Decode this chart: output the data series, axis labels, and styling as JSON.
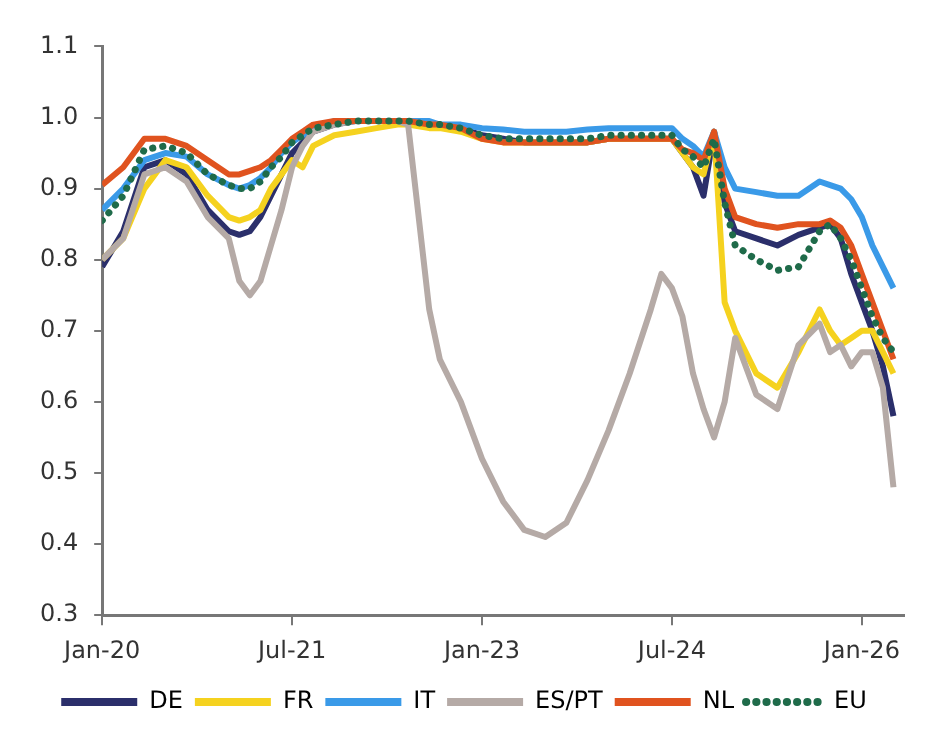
{
  "chart_data": {
    "type": "line",
    "x": [
      "2020-01",
      "2020-03",
      "2020-05",
      "2020-07",
      "2020-09",
      "2020-11",
      "2021-01",
      "2021-02",
      "2021-03",
      "2021-04",
      "2021-05",
      "2021-06",
      "2021-07",
      "2021-08",
      "2021-09",
      "2021-11",
      "2022-01",
      "2022-03",
      "2022-05",
      "2022-06",
      "2022-08",
      "2022-09",
      "2022-11",
      "2023-01",
      "2023-03",
      "2023-05",
      "2023-07",
      "2023-09",
      "2023-11",
      "2024-01",
      "2024-03",
      "2024-05",
      "2024-06",
      "2024-07",
      "2024-08",
      "2024-09",
      "2024-10",
      "2024-11",
      "2024-12",
      "2025-01",
      "2025-03",
      "2025-05",
      "2025-07",
      "2025-09",
      "2025-10",
      "2025-11",
      "2025-12",
      "2026-01",
      "2026-02",
      "2026-03",
      "2026-04"
    ],
    "series": [
      {
        "name": "DE",
        "color": "#2b2f6b",
        "line_style": "solid",
        "values": [
          0.79,
          0.84,
          0.93,
          0.94,
          0.92,
          0.87,
          0.84,
          0.835,
          0.84,
          0.86,
          0.89,
          0.92,
          0.95,
          0.965,
          0.98,
          0.99,
          0.995,
          0.995,
          0.995,
          0.995,
          0.99,
          0.99,
          0.985,
          0.975,
          0.97,
          0.965,
          0.965,
          0.965,
          0.965,
          0.97,
          0.97,
          0.97,
          0.97,
          0.97,
          0.95,
          0.93,
          0.89,
          0.98,
          0.88,
          0.84,
          0.83,
          0.82,
          0.835,
          0.845,
          0.85,
          0.83,
          0.78,
          0.74,
          0.7,
          0.65,
          0.58
        ]
      },
      {
        "name": "FR",
        "color": "#f5d21f",
        "line_style": "solid",
        "values": [
          0.8,
          0.83,
          0.9,
          0.94,
          0.93,
          0.89,
          0.86,
          0.855,
          0.86,
          0.87,
          0.9,
          0.92,
          0.94,
          0.93,
          0.96,
          0.975,
          0.98,
          0.985,
          0.99,
          0.99,
          0.985,
          0.985,
          0.98,
          0.97,
          0.965,
          0.965,
          0.965,
          0.965,
          0.965,
          0.97,
          0.97,
          0.97,
          0.97,
          0.97,
          0.95,
          0.93,
          0.92,
          0.98,
          0.74,
          0.7,
          0.64,
          0.62,
          0.67,
          0.73,
          0.7,
          0.68,
          0.69,
          0.7,
          0.7,
          0.67,
          0.64
        ]
      },
      {
        "name": "IT",
        "color": "#3a9ae8",
        "line_style": "solid",
        "values": [
          0.87,
          0.9,
          0.94,
          0.95,
          0.945,
          0.92,
          0.905,
          0.9,
          0.905,
          0.915,
          0.93,
          0.95,
          0.965,
          0.975,
          0.985,
          0.995,
          0.995,
          0.995,
          0.995,
          0.995,
          0.995,
          0.99,
          0.99,
          0.985,
          0.983,
          0.98,
          0.98,
          0.98,
          0.983,
          0.985,
          0.985,
          0.985,
          0.985,
          0.985,
          0.97,
          0.96,
          0.945,
          0.98,
          0.93,
          0.9,
          0.895,
          0.89,
          0.89,
          0.91,
          0.905,
          0.9,
          0.885,
          0.86,
          0.82,
          0.79,
          0.76
        ]
      },
      {
        "name": "ES/PT",
        "color": "#b5aaa6",
        "line_style": "solid",
        "values": [
          0.8,
          0.83,
          0.92,
          0.93,
          0.91,
          0.86,
          0.83,
          0.77,
          0.75,
          0.77,
          0.82,
          0.87,
          0.93,
          0.96,
          0.98,
          0.99,
          0.995,
          0.995,
          0.995,
          0.99,
          0.73,
          0.66,
          0.6,
          0.52,
          0.46,
          0.42,
          0.41,
          0.43,
          0.49,
          0.56,
          0.64,
          0.73,
          0.78,
          0.76,
          0.72,
          0.64,
          0.59,
          0.55,
          0.6,
          0.69,
          0.61,
          0.59,
          0.68,
          0.71,
          0.67,
          0.68,
          0.65,
          0.67,
          0.67,
          0.62,
          0.48
        ]
      },
      {
        "name": "NL",
        "color": "#e0531f",
        "line_style": "solid",
        "values": [
          0.905,
          0.93,
          0.97,
          0.97,
          0.96,
          0.94,
          0.92,
          0.92,
          0.925,
          0.93,
          0.94,
          0.955,
          0.97,
          0.98,
          0.99,
          0.995,
          0.995,
          0.995,
          0.995,
          0.995,
          0.99,
          0.99,
          0.985,
          0.97,
          0.965,
          0.965,
          0.965,
          0.965,
          0.965,
          0.97,
          0.97,
          0.97,
          0.97,
          0.97,
          0.955,
          0.95,
          0.94,
          0.98,
          0.9,
          0.86,
          0.85,
          0.845,
          0.85,
          0.85,
          0.855,
          0.845,
          0.82,
          0.78,
          0.74,
          0.7,
          0.66
        ]
      },
      {
        "name": "EU",
        "color": "#1f6b4a",
        "line_style": "dotted",
        "values": [
          0.855,
          0.89,
          0.955,
          0.96,
          0.95,
          0.92,
          0.905,
          0.9,
          0.9,
          0.91,
          0.93,
          0.945,
          0.965,
          0.975,
          0.985,
          0.99,
          0.995,
          0.995,
          0.995,
          0.995,
          0.99,
          0.99,
          0.985,
          0.975,
          0.97,
          0.97,
          0.97,
          0.97,
          0.97,
          0.975,
          0.975,
          0.975,
          0.975,
          0.975,
          0.955,
          0.945,
          0.93,
          0.97,
          0.88,
          0.82,
          0.8,
          0.785,
          0.79,
          0.84,
          0.85,
          0.83,
          0.8,
          0.76,
          0.72,
          0.69,
          0.67
        ]
      }
    ],
    "xlim": [
      "2020-01",
      "2026-05"
    ],
    "xticks": [
      {
        "value": "2020-01",
        "label": "Jan-20"
      },
      {
        "value": "2021-07",
        "label": "Jul-21"
      },
      {
        "value": "2023-01",
        "label": "Jan-23"
      },
      {
        "value": "2024-07",
        "label": "Jul-24"
      },
      {
        "value": "2026-01",
        "label": "Jan-26"
      }
    ],
    "ylim": [
      0.3,
      1.1
    ],
    "yticks": [
      0.3,
      0.4,
      0.5,
      0.6,
      0.7,
      0.8,
      0.9,
      {
        "value": 1,
        "label": "1.0"
      },
      1.1
    ],
    "grid": false,
    "legend": "bottom",
    "marker": "none"
  }
}
